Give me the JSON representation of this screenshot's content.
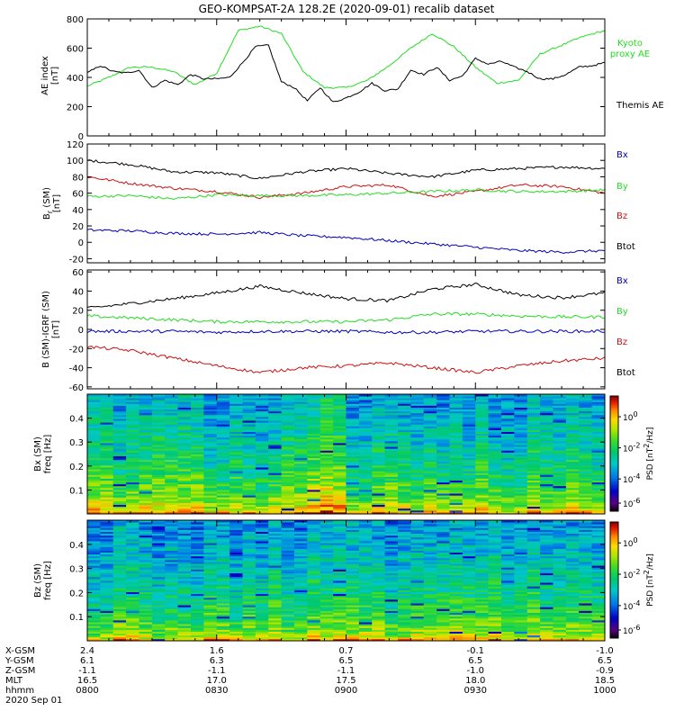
{
  "title": "GEO-KOMPSAT-2A 128.2E (2020-09-01) recalib dataset",
  "colors": {
    "black": "#000000",
    "green": "#22dd22",
    "red": "#cc1111",
    "blue": "#0000bb"
  },
  "chart_data": [
    {
      "type": "line",
      "ylabel": [
        "AE index",
        "[nT]"
      ],
      "ylim": [
        0,
        800
      ],
      "yticks": [
        "0",
        "200",
        "400",
        "600",
        "800"
      ],
      "series": [
        {
          "name": "Kyoto proxy AE",
          "color": "#22dd22",
          "label_lines": [
            "Kyoto",
            "proxy AE"
          ],
          "x": [
            0,
            5,
            10,
            15,
            20,
            25,
            30,
            35,
            40,
            45,
            50,
            55,
            60,
            65,
            70,
            75,
            80,
            85,
            90,
            95,
            100,
            105,
            110,
            115,
            120
          ],
          "values": [
            340,
            400,
            470,
            470,
            440,
            350,
            430,
            720,
            750,
            700,
            440,
            330,
            330,
            380,
            480,
            600,
            700,
            610,
            470,
            360,
            380,
            560,
            620,
            680,
            720
          ]
        },
        {
          "name": "Themis AE",
          "color": "#000000",
          "label_lines": [
            "Themis AE"
          ],
          "x": [
            0,
            3,
            6,
            9,
            12,
            15,
            18,
            21,
            24,
            27,
            30,
            33,
            36,
            39,
            42,
            45,
            48,
            51,
            54,
            57,
            60,
            63,
            66,
            69,
            72,
            75,
            78,
            81,
            84,
            87,
            90,
            93,
            96,
            99,
            102,
            105,
            108,
            111,
            114,
            117,
            120
          ],
          "values": [
            430,
            480,
            440,
            430,
            450,
            330,
            380,
            350,
            420,
            390,
            390,
            400,
            500,
            610,
            620,
            370,
            330,
            240,
            330,
            230,
            260,
            300,
            360,
            310,
            320,
            450,
            420,
            470,
            380,
            410,
            530,
            490,
            510,
            470,
            440,
            390,
            390,
            420,
            470,
            480,
            500
          ]
        }
      ]
    },
    {
      "type": "line",
      "ylabel": [
        "B",
        "r",
        "(SM)",
        "[nT]"
      ],
      "ylim": [
        -25,
        120
      ],
      "yticks": [
        "-20",
        "0",
        "20",
        "40",
        "60",
        "80",
        "100",
        "120"
      ],
      "legend": [
        {
          "name": "Bx",
          "color": "#0000bb"
        },
        {
          "name": "By",
          "color": "#22dd22"
        },
        {
          "name": "Bz",
          "color": "#cc1111"
        },
        {
          "name": "Btot",
          "color": "#000000"
        }
      ],
      "series": [
        {
          "name": "Btot",
          "color": "#000000",
          "x": [
            0,
            10,
            20,
            30,
            40,
            50,
            60,
            70,
            80,
            90,
            100,
            110,
            120
          ],
          "values": [
            100,
            95,
            86,
            85,
            78,
            86,
            90,
            84,
            80,
            88,
            90,
            92,
            90
          ]
        },
        {
          "name": "Bz",
          "color": "#cc1111",
          "x": [
            0,
            10,
            20,
            30,
            40,
            50,
            60,
            70,
            80,
            90,
            100,
            110,
            120
          ],
          "values": [
            80,
            72,
            66,
            62,
            55,
            60,
            68,
            70,
            56,
            62,
            70,
            68,
            60
          ]
        },
        {
          "name": "By",
          "color": "#22dd22",
          "x": [
            0,
            10,
            20,
            30,
            40,
            50,
            60,
            70,
            80,
            90,
            100,
            110,
            120
          ],
          "values": [
            56,
            57,
            53,
            58,
            57,
            57,
            58,
            60,
            62,
            64,
            62,
            62,
            64
          ]
        },
        {
          "name": "Bx",
          "color": "#0000bb",
          "x": [
            0,
            10,
            20,
            30,
            40,
            50,
            60,
            70,
            80,
            90,
            100,
            110,
            120
          ],
          "values": [
            15,
            14,
            11,
            10,
            12,
            8,
            6,
            2,
            -2,
            -6,
            -10,
            -12,
            -10
          ]
        }
      ]
    },
    {
      "type": "line",
      "ylabel": [
        "B (SM)-IGRF (SM)",
        "[nT]"
      ],
      "ylim": [
        -62,
        62
      ],
      "yticks": [
        "-60",
        "-40",
        "-20",
        "0",
        "20",
        "40",
        "60"
      ],
      "legend": [
        {
          "name": "Bx",
          "color": "#0000bb"
        },
        {
          "name": "By",
          "color": "#22dd22"
        },
        {
          "name": "Bz",
          "color": "#cc1111"
        },
        {
          "name": "Btot",
          "color": "#000000"
        }
      ],
      "series": [
        {
          "name": "Btot",
          "color": "#000000",
          "x": [
            0,
            10,
            20,
            30,
            40,
            50,
            60,
            70,
            80,
            90,
            100,
            110,
            120
          ],
          "values": [
            22,
            27,
            32,
            38,
            45,
            38,
            32,
            30,
            42,
            47,
            36,
            33,
            38
          ]
        },
        {
          "name": "By",
          "color": "#22dd22",
          "x": [
            0,
            10,
            20,
            30,
            40,
            50,
            60,
            70,
            80,
            90,
            100,
            110,
            120
          ],
          "values": [
            14,
            12,
            10,
            8,
            8,
            8,
            8,
            10,
            16,
            16,
            14,
            13,
            13
          ]
        },
        {
          "name": "Bx",
          "color": "#0000bb",
          "x": [
            0,
            10,
            20,
            30,
            40,
            50,
            60,
            70,
            80,
            90,
            100,
            110,
            120
          ],
          "values": [
            -2,
            -2,
            -2,
            -3,
            -2,
            -2,
            -2,
            -3,
            -3,
            -2,
            -2,
            -2,
            -2
          ]
        },
        {
          "name": "Bz",
          "color": "#cc1111",
          "x": [
            0,
            10,
            20,
            30,
            40,
            50,
            60,
            70,
            80,
            90,
            100,
            110,
            120
          ],
          "values": [
            -18,
            -22,
            -30,
            -38,
            -45,
            -40,
            -38,
            -35,
            -40,
            -45,
            -38,
            -33,
            -30
          ]
        }
      ]
    },
    {
      "type": "heatmap",
      "ylabel": [
        "Bx (SM)",
        "freq [Hz]"
      ],
      "ylim": [
        0,
        0.5
      ],
      "yticks": [
        "0.1",
        "0.2",
        "0.3",
        "0.4"
      ],
      "colorbar": {
        "label": "PSD [nT^2/Hz]",
        "ticks": [
          "10^0",
          "10^-2",
          "10^-4",
          "10^-6"
        ]
      }
    },
    {
      "type": "heatmap",
      "ylabel": [
        "Bz (SM)",
        "freq [Hz]"
      ],
      "ylim": [
        0,
        0.5
      ],
      "yticks": [
        "0.1",
        "0.2",
        "0.3",
        "0.4"
      ],
      "colorbar": {
        "label": "PSD [nT^2/Hz]",
        "ticks": [
          "10^0",
          "10^-2",
          "10^-4",
          "10^-6"
        ]
      }
    }
  ],
  "x_axis_table": {
    "rows": [
      {
        "label": "X-GSM",
        "values": [
          "2.4",
          "1.6",
          "0.7",
          "-0.1",
          "-1.0"
        ]
      },
      {
        "label": "Y-GSM",
        "values": [
          "6.1",
          "6.3",
          "6.5",
          "6.5",
          "6.5"
        ]
      },
      {
        "label": "Z-GSM",
        "values": [
          "-1.1",
          "-1.1",
          "-1.1",
          "-1.0",
          "-0.9"
        ]
      },
      {
        "label": "MLT",
        "values": [
          "16.5",
          "17.0",
          "17.5",
          "18.0",
          "18.5"
        ]
      },
      {
        "label": "hhmm",
        "values": [
          "0800",
          "0830",
          "0900",
          "0930",
          "1000"
        ]
      }
    ],
    "date": "2020 Sep 01"
  }
}
